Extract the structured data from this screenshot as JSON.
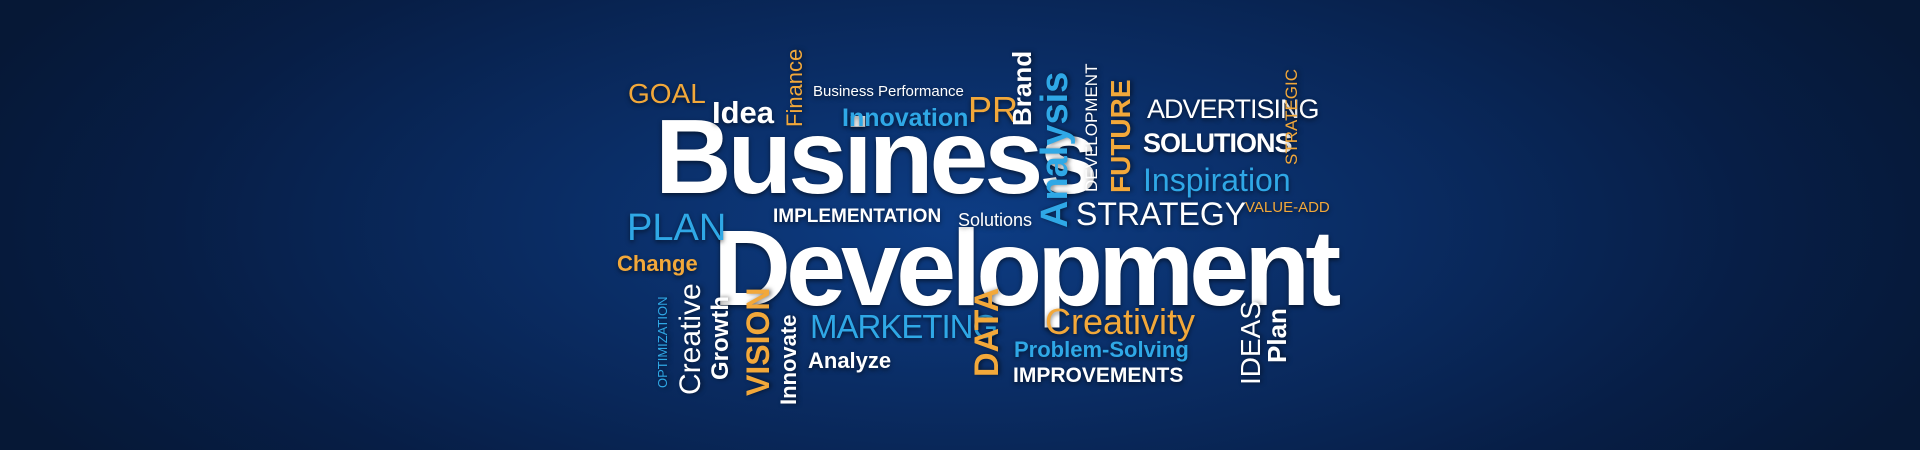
{
  "words": {
    "business": "Business",
    "development": "Development",
    "goal": "GOAL",
    "idea": "Idea",
    "finance": "Finance",
    "business_performance": "Business Performance",
    "innovation": "Innovation",
    "pr": "PR",
    "brand": "Brand",
    "analysis": "Analysis",
    "development_small": "DEVELOPMENT",
    "future": "FUTURE",
    "advertising": "ADVERTISING",
    "solutions_caps": "SOLUTIONS",
    "strategic": "STRATEGIC",
    "inspiration": "Inspiration",
    "value_add": "VALUE-ADD",
    "strategy": "STRATEGY",
    "plan_caps": "PLAN",
    "implementation": "IMPLEMENTATION",
    "solutions": "Solutions",
    "change": "Change",
    "optimization": "OPTIMIZATION",
    "creative": "Creative",
    "growth": "Growth",
    "vision": "VISION",
    "innovate": "Innovate",
    "marketing": "MARKETING",
    "analyze": "Analyze",
    "data": "DATA",
    "creativity": "Creativity",
    "problem_solving": "Problem-Solving",
    "improvements": "IMPROVEMENTS",
    "ideas": "IDEAS",
    "plan": "Plan"
  },
  "colors": {
    "background": "#071e46",
    "white": "#ffffff",
    "orange": "#f2a83a",
    "blue": "#2fa8e6"
  }
}
